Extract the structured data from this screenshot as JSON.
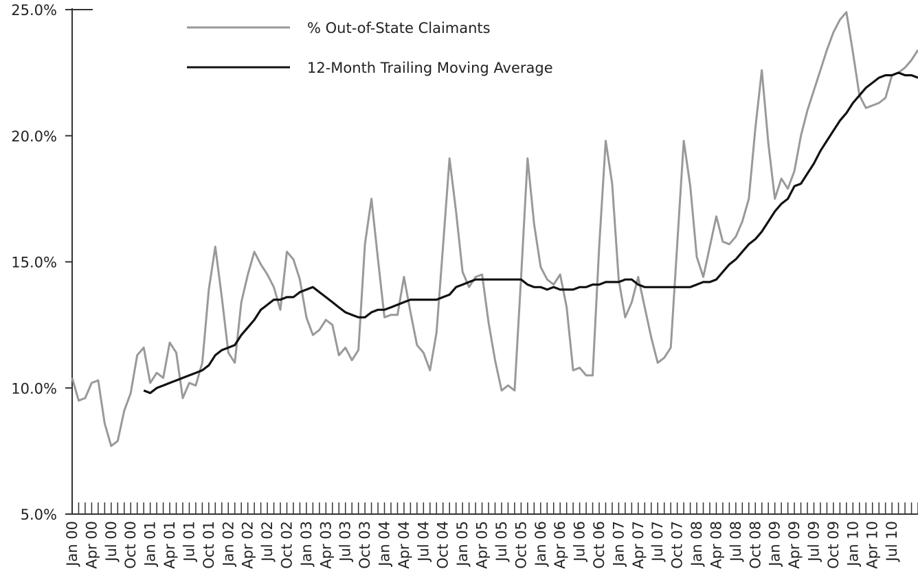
{
  "chart_data": {
    "type": "line",
    "categories": [
      "Jan 00",
      null,
      null,
      "Apr 00",
      null,
      null,
      "Jul 00",
      null,
      null,
      "Oct 00",
      null,
      null,
      "Jan 01",
      null,
      null,
      "Apr 01",
      null,
      null,
      "Jul 01",
      null,
      null,
      "Oct 01",
      null,
      null,
      "Jan 02",
      null,
      null,
      "Apr 02",
      null,
      null,
      "Jul 02",
      null,
      null,
      "Oct 02",
      null,
      null,
      "Jan 03",
      null,
      null,
      "Apr 03",
      null,
      null,
      "Jul 03",
      null,
      null,
      "Oct 03",
      null,
      null,
      "Jan 04",
      null,
      null,
      "Apr 04",
      null,
      null,
      "Jul 04",
      null,
      null,
      "Oct 04",
      null,
      null,
      "Jan 05",
      null,
      null,
      "Apr 05",
      null,
      null,
      "Jul 05",
      null,
      null,
      "Oct 05",
      null,
      null,
      "Jan 06",
      null,
      null,
      "Apr 06",
      null,
      null,
      "Jul 06",
      null,
      null,
      "Oct 06",
      null,
      null,
      "Jan 07",
      null,
      null,
      "Apr 07",
      null,
      null,
      "Jul 07",
      null,
      null,
      "Oct 07",
      null,
      null,
      "Jan 08",
      null,
      null,
      "Apr 08",
      null,
      null,
      "Jul 08",
      null,
      null,
      "Oct 08",
      null,
      null,
      "Jan 09",
      null,
      null,
      "Apr 09",
      null,
      null,
      "Jul 09",
      null,
      null,
      "Oct 09",
      null,
      null,
      "Jan 10",
      null,
      null,
      "Apr 10",
      null,
      null,
      "Jul 10",
      null,
      null,
      null,
      null
    ],
    "series": [
      {
        "name": "% Out-of-State Claimants",
        "color": "#999999",
        "values": [
          10.4,
          9.5,
          9.6,
          10.2,
          10.3,
          8.6,
          7.7,
          7.9,
          9.1,
          9.8,
          11.3,
          11.6,
          10.2,
          10.6,
          10.4,
          11.8,
          11.4,
          9.6,
          10.2,
          10.1,
          11.0,
          13.9,
          15.6,
          13.6,
          11.4,
          11.0,
          13.4,
          14.5,
          15.4,
          14.9,
          14.5,
          14.0,
          13.1,
          15.4,
          15.1,
          14.3,
          12.8,
          12.1,
          12.3,
          12.7,
          12.5,
          11.3,
          11.6,
          11.1,
          11.5,
          15.7,
          17.5,
          15.1,
          12.8,
          12.9,
          12.9,
          14.4,
          13.0,
          11.7,
          11.4,
          10.7,
          12.2,
          15.6,
          19.1,
          17.0,
          14.6,
          14.0,
          14.4,
          14.5,
          12.6,
          11.1,
          9.9,
          10.1,
          9.9,
          14.4,
          19.1,
          16.5,
          14.8,
          14.3,
          14.1,
          14.5,
          13.2,
          10.7,
          10.8,
          10.5,
          10.5,
          15.6,
          19.8,
          18.1,
          14.3,
          12.8,
          13.4,
          14.4,
          13.2,
          12.0,
          11.0,
          11.2,
          11.6,
          15.7,
          19.8,
          18.0,
          15.2,
          14.4,
          15.6,
          16.8,
          15.8,
          15.7,
          16.0,
          16.6,
          17.5,
          20.3,
          22.6,
          19.7,
          17.5,
          18.3,
          17.9,
          18.6,
          20.0,
          21.0,
          21.8,
          22.6,
          23.4,
          24.1,
          24.6,
          24.9,
          23.3,
          21.6,
          21.1,
          21.2,
          21.3,
          21.5,
          22.4,
          22.5,
          22.7,
          23.0,
          23.4
        ]
      },
      {
        "name": "12-Month Trailing Moving Average",
        "color": "#111111",
        "values": [
          null,
          null,
          null,
          null,
          null,
          null,
          null,
          null,
          null,
          null,
          null,
          9.9,
          9.8,
          10.0,
          10.1,
          10.2,
          10.3,
          10.4,
          10.5,
          10.6,
          10.7,
          10.9,
          11.3,
          11.5,
          11.6,
          11.7,
          12.1,
          12.4,
          12.7,
          13.1,
          13.3,
          13.5,
          13.5,
          13.6,
          13.6,
          13.8,
          13.9,
          14.0,
          13.8,
          13.6,
          13.4,
          13.2,
          13.0,
          12.9,
          12.8,
          12.8,
          13.0,
          13.1,
          13.1,
          13.2,
          13.3,
          13.4,
          13.5,
          13.5,
          13.5,
          13.5,
          13.5,
          13.6,
          13.7,
          14.0,
          14.1,
          14.2,
          14.3,
          14.3,
          14.3,
          14.3,
          14.3,
          14.3,
          14.3,
          14.3,
          14.1,
          14.0,
          14.0,
          13.9,
          14.0,
          13.9,
          13.9,
          13.9,
          14.0,
          14.0,
          14.1,
          14.1,
          14.2,
          14.2,
          14.2,
          14.3,
          14.3,
          14.1,
          14.0,
          14.0,
          14.0,
          14.0,
          14.0,
          14.0,
          14.0,
          14.0,
          14.1,
          14.2,
          14.2,
          14.3,
          14.6,
          14.9,
          15.1,
          15.4,
          15.7,
          15.9,
          16.2,
          16.6,
          17.0,
          17.3,
          17.5,
          18.0,
          18.1,
          18.5,
          18.9,
          19.4,
          19.8,
          20.2,
          20.6,
          20.9,
          21.3,
          21.6,
          21.9,
          22.1,
          22.3,
          22.4,
          22.4,
          22.5,
          22.4,
          22.4,
          22.3
        ]
      }
    ],
    "ylim": [
      5,
      25
    ],
    "yticks": [
      {
        "value": 5,
        "label": "5.0%"
      },
      {
        "value": 10,
        "label": "10.0%"
      },
      {
        "value": 15,
        "label": "15.0%"
      },
      {
        "value": 20,
        "label": "20.0%"
      },
      {
        "value": 25,
        "label": "25.0%"
      }
    ],
    "legend": "top-left"
  }
}
